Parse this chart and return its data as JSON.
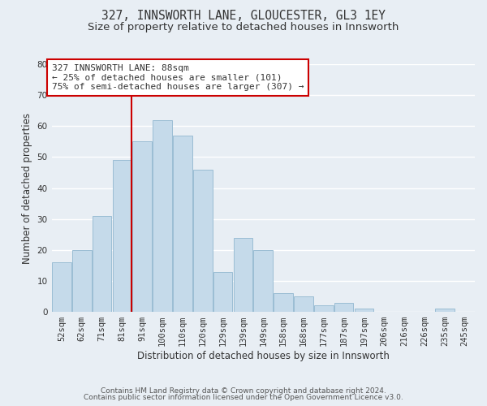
{
  "title": "327, INNSWORTH LANE, GLOUCESTER, GL3 1EY",
  "subtitle": "Size of property relative to detached houses in Innsworth",
  "xlabel": "Distribution of detached houses by size in Innsworth",
  "ylabel": "Number of detached properties",
  "footer_line1": "Contains HM Land Registry data © Crown copyright and database right 2024.",
  "footer_line2": "Contains public sector information licensed under the Open Government Licence v3.0.",
  "bar_labels": [
    "52sqm",
    "62sqm",
    "71sqm",
    "81sqm",
    "91sqm",
    "100sqm",
    "110sqm",
    "120sqm",
    "129sqm",
    "139sqm",
    "149sqm",
    "158sqm",
    "168sqm",
    "177sqm",
    "187sqm",
    "197sqm",
    "206sqm",
    "216sqm",
    "226sqm",
    "235sqm",
    "245sqm"
  ],
  "bar_values": [
    16,
    20,
    31,
    49,
    55,
    62,
    57,
    46,
    13,
    24,
    20,
    6,
    5,
    2,
    3,
    1,
    0,
    0,
    0,
    1,
    0
  ],
  "bar_color": "#c5daea",
  "bar_edge_color": "#9bbdd4",
  "annotation_title": "327 INNSWORTH LANE: 88sqm",
  "annotation_line2": "← 25% of detached houses are smaller (101)",
  "annotation_line3": "75% of semi-detached houses are larger (307) →",
  "ref_line_color": "#cc0000",
  "annotation_box_facecolor": "#ffffff",
  "annotation_box_edgecolor": "#cc0000",
  "ylim": [
    0,
    80
  ],
  "yticks": [
    0,
    10,
    20,
    30,
    40,
    50,
    60,
    70,
    80
  ],
  "bg_color": "#e8eef4",
  "grid_color": "#ffffff",
  "title_fontsize": 10.5,
  "subtitle_fontsize": 9.5,
  "axis_label_fontsize": 8.5,
  "tick_fontsize": 7.5,
  "annotation_fontsize": 8,
  "footer_fontsize": 6.5
}
